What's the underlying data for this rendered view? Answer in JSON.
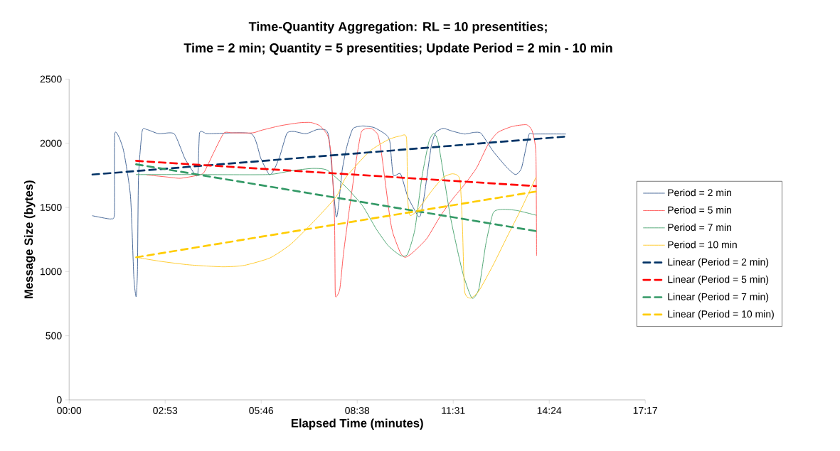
{
  "chart_data": {
    "type": "line",
    "title": "Time-Quantity Aggregation: RL = 10 presentities;",
    "subtitle": "Time = 2 min; Quantity = 5 presentities; Update Period = 2 min - 10 min",
    "xlabel": "Elapsed Time (minutes)",
    "ylabel": "Message Size (bytes)",
    "xlim": [
      0,
      17.28
    ],
    "xticks": [
      {
        "value": 0,
        "label": "00:00"
      },
      {
        "value": 2.88,
        "label": "02:53"
      },
      {
        "value": 5.76,
        "label": "05:46"
      },
      {
        "value": 8.64,
        "label": "08:38"
      },
      {
        "value": 11.52,
        "label": "11:31"
      },
      {
        "value": 14.4,
        "label": "14:24"
      },
      {
        "value": 17.28,
        "label": "17:17"
      }
    ],
    "ylim": [
      0,
      2500
    ],
    "yticks": [
      0,
      500,
      1000,
      1500,
      2000,
      2500
    ],
    "grid": false,
    "legend": "right",
    "marker": "none",
    "series": [
      {
        "name": "Period = 2 min",
        "color": "#4a6a9a",
        "line_style": "solid",
        "x": [
          0.7,
          1.05,
          1.27,
          1.36,
          1.37,
          1.62,
          1.84,
          1.94,
          2.01,
          2.05,
          2.08,
          2.19,
          2.33,
          2.69,
          3.15,
          3.47,
          3.76,
          3.86,
          3.91,
          4.04,
          4.18,
          5.46,
          5.75,
          6.0,
          6.14,
          6.32,
          6.53,
          6.74,
          7.1,
          7.44,
          7.69,
          7.8,
          8.0,
          8.08,
          8.19,
          8.33,
          8.51,
          8.8,
          9.15,
          9.51,
          9.62,
          9.72,
          9.94,
          10.15,
          10.37,
          10.47,
          10.54,
          10.65,
          10.86,
          11.0,
          11.22,
          11.5,
          11.86,
          12.15,
          12.36,
          12.72,
          13.14,
          13.39,
          13.57,
          13.79,
          13.93,
          14.89
        ],
        "values": [
          1435,
          1417,
          1411,
          1458,
          2076,
          1956,
          1587,
          959,
          803,
          1015,
          1734,
          2094,
          2107,
          2074,
          2074,
          1882,
          1762,
          1762,
          2076,
          2085,
          2074,
          2074,
          1882,
          1756,
          1790,
          1900,
          2076,
          2092,
          2074,
          2107,
          2103,
          2029,
          1439,
          1513,
          1790,
          1974,
          2113,
          2135,
          2122,
          2066,
          2011,
          1753,
          1762,
          1587,
          1476,
          1430,
          1439,
          1587,
          1974,
          2085,
          2116,
          2094,
          2072,
          2085,
          2076,
          1937,
          1808,
          1756,
          1808,
          2066,
          2072,
          2072
        ]
      },
      {
        "name": "Period = 5 min",
        "color": "#ff5a5a",
        "line_style": "solid",
        "x": [
          2.33,
          2.9,
          3.33,
          3.83,
          4.04,
          4.32,
          4.64,
          4.89,
          5.5,
          5.75,
          6.32,
          6.88,
          7.24,
          7.52,
          7.76,
          7.87,
          7.96,
          7.98,
          8.01,
          8.12,
          8.23,
          8.4,
          8.62,
          8.76,
          8.9,
          9.08,
          9.26,
          9.37,
          9.62,
          9.72,
          9.94,
          10.08,
          10.29,
          10.72,
          11.15,
          11.51,
          11.86,
          12.22,
          12.57,
          12.86,
          13.29,
          13.72,
          13.89,
          14.0,
          14.02
        ],
        "values": [
          1753,
          1738,
          1727,
          1749,
          1771,
          1919,
          2079,
          2081,
          2081,
          2100,
          2136,
          2159,
          2162,
          2136,
          2057,
          1882,
          1402,
          849,
          803,
          867,
          1144,
          1476,
          1882,
          2085,
          2113,
          2113,
          2066,
          1919,
          1421,
          1292,
          1144,
          1111,
          1144,
          1255,
          1439,
          1568,
          1679,
          1808,
          1993,
          2085,
          2131,
          2144,
          2094,
          1919,
          1125
        ]
      },
      {
        "name": "Period = 7 min",
        "color": "#55aa78",
        "line_style": "solid",
        "x": [
          2.01,
          3.83,
          5.96,
          6.67,
          7.31,
          7.74,
          8.3,
          8.8,
          9.22,
          9.58,
          9.94,
          10.15,
          10.37,
          10.58,
          10.79,
          10.94,
          11.08,
          11.44,
          11.8,
          12.08,
          12.29,
          12.5,
          12.72,
          13.0,
          13.43,
          14.01
        ],
        "values": [
          1756,
          1756,
          1756,
          1786,
          1804,
          1790,
          1660,
          1513,
          1328,
          1199,
          1125,
          1135,
          1328,
          1734,
          2011,
          2076,
          1993,
          1421,
          996,
          793,
          867,
          1218,
          1458,
          1485,
          1476,
          1439
        ]
      },
      {
        "name": "Period = 10 min",
        "color": "#ffcc33",
        "line_style": "solid",
        "x": [
          2.01,
          2.76,
          3.61,
          4.61,
          5.25,
          6.03,
          6.67,
          7.38,
          8.02,
          8.3,
          9.01,
          9.58,
          9.94,
          10.12,
          10.15,
          10.22,
          10.44,
          10.86,
          11.22,
          11.51,
          11.72,
          11.8,
          11.86,
          12.04,
          12.29,
          12.72,
          13.14,
          13.57,
          14.0
        ],
        "values": [
          1111,
          1079,
          1052,
          1037,
          1048,
          1107,
          1218,
          1402,
          1587,
          1734,
          1937,
          2029,
          2057,
          2039,
          1587,
          1439,
          1476,
          1624,
          1734,
          1762,
          1716,
          1328,
          849,
          793,
          849,
          1052,
          1273,
          1494,
          1734
        ]
      },
      {
        "name": "Linear (Period = 2 min)",
        "color": "#003366",
        "line_style": "dashed",
        "x": [
          0.7,
          14.89
        ],
        "values": [
          1756,
          2052
        ]
      },
      {
        "name": "Linear (Period = 5 min)",
        "color": "#ff0000",
        "line_style": "dashed",
        "x": [
          2.01,
          14.0
        ],
        "values": [
          1863,
          1666
        ]
      },
      {
        "name": "Linear (Period = 7 min)",
        "color": "#339966",
        "line_style": "dashed",
        "x": [
          2.01,
          14.01
        ],
        "values": [
          1836,
          1315
        ]
      },
      {
        "name": "Linear (Period = 10 min)",
        "color": "#ffcc00",
        "line_style": "dashed",
        "x": [
          2.01,
          14.01
        ],
        "values": [
          1111,
          1624
        ]
      }
    ]
  }
}
